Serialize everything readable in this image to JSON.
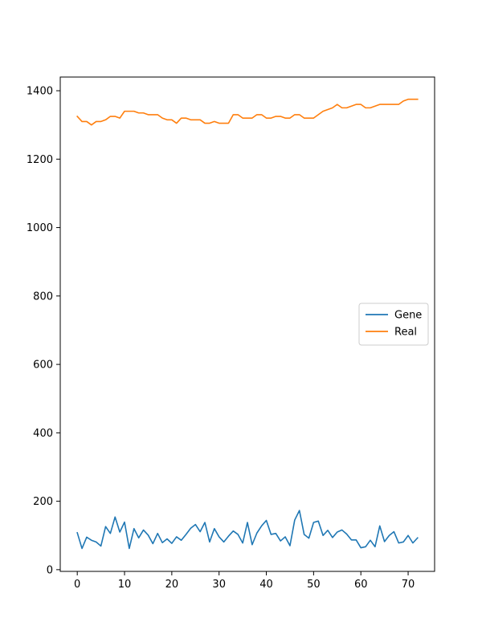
{
  "chart_data": {
    "type": "line",
    "title": "",
    "xlabel": "",
    "ylabel": "",
    "xlim": [
      -3.6,
      75.6
    ],
    "ylim": [
      -5,
      1440
    ],
    "xticks": [
      0,
      10,
      20,
      30,
      40,
      50,
      60,
      70
    ],
    "yticks": [
      0,
      200,
      400,
      600,
      800,
      1000,
      1200,
      1400
    ],
    "grid": false,
    "legend": {
      "position": "center-right"
    },
    "x": [
      0,
      1,
      2,
      3,
      4,
      5,
      6,
      7,
      8,
      9,
      10,
      11,
      12,
      13,
      14,
      15,
      16,
      17,
      18,
      19,
      20,
      21,
      22,
      23,
      24,
      25,
      26,
      27,
      28,
      29,
      30,
      31,
      32,
      33,
      34,
      35,
      36,
      37,
      38,
      39,
      40,
      41,
      42,
      43,
      44,
      45,
      46,
      47,
      48,
      49,
      50,
      51,
      52,
      53,
      54,
      55,
      56,
      57,
      58,
      59,
      60,
      61,
      62,
      63,
      64,
      65,
      66,
      67,
      68,
      69,
      70,
      71,
      72
    ],
    "series": [
      {
        "name": "Gene",
        "color": "#1f77b4",
        "values": [
          108,
          62,
          95,
          86,
          81,
          69,
          126,
          106,
          154,
          110,
          139,
          62,
          120,
          93,
          116,
          101,
          76,
          106,
          79,
          90,
          77,
          96,
          86,
          103,
          121,
          132,
          111,
          138,
          81,
          120,
          96,
          81,
          98,
          113,
          103,
          78,
          138,
          73,
          107,
          128,
          144,
          103,
          106,
          84,
          96,
          70,
          145,
          173,
          103,
          92,
          138,
          142,
          100,
          115,
          94,
          110,
          116,
          104,
          87,
          87,
          64,
          67,
          86,
          67,
          128,
          82,
          100,
          111,
          78,
          81,
          100,
          78,
          93
        ]
      },
      {
        "name": "Real",
        "color": "#ff7f0e",
        "values": [
          1325,
          1310,
          1310,
          1300,
          1310,
          1310,
          1315,
          1325,
          1325,
          1320,
          1340,
          1340,
          1340,
          1335,
          1335,
          1330,
          1330,
          1330,
          1320,
          1315,
          1315,
          1305,
          1320,
          1320,
          1315,
          1315,
          1315,
          1305,
          1305,
          1310,
          1305,
          1305,
          1305,
          1330,
          1330,
          1320,
          1320,
          1320,
          1330,
          1330,
          1320,
          1320,
          1325,
          1325,
          1320,
          1320,
          1330,
          1330,
          1320,
          1320,
          1320,
          1330,
          1340,
          1345,
          1350,
          1360,
          1350,
          1350,
          1355,
          1360,
          1360,
          1350,
          1350,
          1355,
          1360,
          1360,
          1360,
          1360,
          1360,
          1370,
          1375,
          1375,
          1375
        ]
      }
    ]
  }
}
